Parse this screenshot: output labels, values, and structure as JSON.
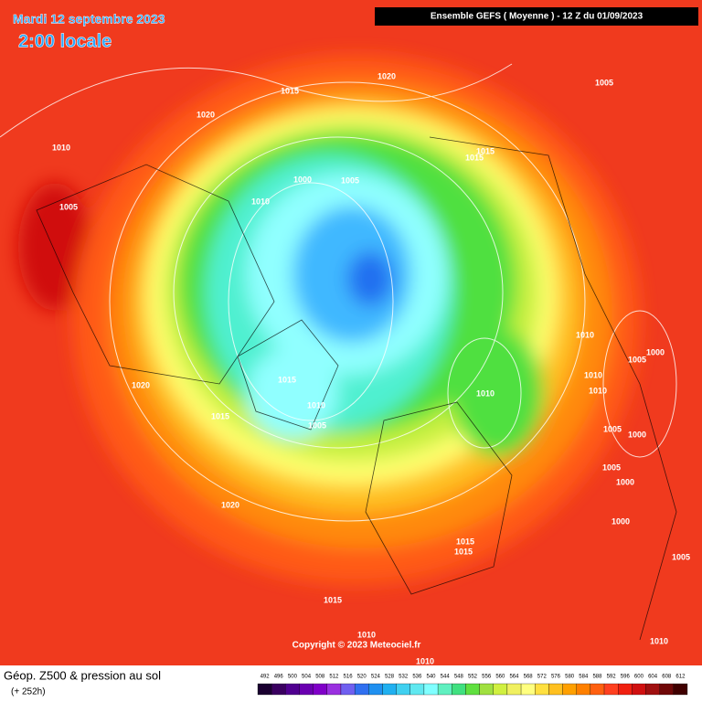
{
  "header": {
    "date": "Mardi 12 septembre 2023",
    "time": "2:00 locale",
    "model": "Ensemble GEFS  ( Moyenne )  -  12 Z du 01/09/2023"
  },
  "isobars": [
    1020,
    1005,
    1015,
    1020,
    1010,
    1015,
    1015,
    1000,
    1005,
    1010,
    1005,
    1010,
    1000,
    1005,
    1010,
    1010,
    1015,
    1020,
    1010,
    1010,
    1015,
    1005,
    1005,
    1000,
    1005,
    1000,
    1020,
    1000,
    1015,
    1015,
    1005,
    1015,
    1010,
    1010,
    1010
  ],
  "copyright": "Copyright © 2023 Meteociel.fr",
  "legend": {
    "title": "Géop. Z500 & pression au sol",
    "subtitle": "(+ 252h)",
    "levels": [
      492,
      496,
      500,
      504,
      508,
      512,
      516,
      520,
      524,
      528,
      532,
      536,
      540,
      544,
      548,
      552,
      556,
      560,
      564,
      568,
      572,
      576,
      580,
      584,
      588,
      592,
      596,
      600,
      604,
      608,
      612
    ],
    "colors": [
      "#1a0030",
      "#3a0060",
      "#500090",
      "#6a00b0",
      "#8000c8",
      "#9a30e0",
      "#7060f0",
      "#3070f0",
      "#2090f0",
      "#20b0f0",
      "#40d0f0",
      "#60e8f0",
      "#80ffff",
      "#60f0c0",
      "#40e080",
      "#60e040",
      "#a0e040",
      "#d0f040",
      "#f0f060",
      "#ffff80",
      "#ffe040",
      "#ffc020",
      "#ffa000",
      "#ff8000",
      "#ff6010",
      "#ff4020",
      "#f02010",
      "#d01010",
      "#a01010",
      "#700808",
      "#400000"
    ]
  }
}
